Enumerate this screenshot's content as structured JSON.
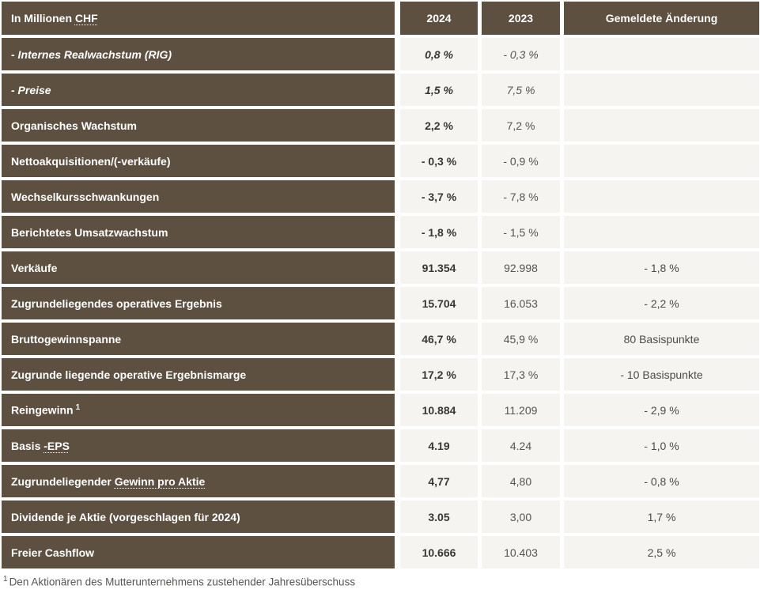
{
  "colors": {
    "header_and_label_bg": "#5e5040",
    "value_cell_bg": "#f5f4f1",
    "label_text": "#ffffff",
    "value_2024_text": "#393733",
    "value_2023_text": "#57544f",
    "separator": "#ffffff"
  },
  "table": {
    "header": {
      "label_prefix": "In Millionen ",
      "label_dotted": "CHF",
      "col_2024": "2024",
      "col_2023": "2023",
      "col_change": "Gemeldete Änderung"
    },
    "rows": [
      {
        "label": "- Internes Realwachstum (RIG)",
        "italic": true,
        "v2024": "0,8 %",
        "v2023": "- 0,3 %",
        "change": ""
      },
      {
        "label": "- Preise",
        "italic": true,
        "v2024": "1,5 %",
        "v2023": "7,5 %",
        "change": ""
      },
      {
        "label": "Organisches Wachstum",
        "v2024": "2,2 %",
        "v2023": "7,2 %",
        "change": ""
      },
      {
        "label": "Nettoakquisitionen/(-verkäufe)",
        "v2024": "- 0,3 %",
        "v2023": "- 0,9 %",
        "change": ""
      },
      {
        "label": "Wechselkursschwankungen",
        "v2024": "- 3,7 %",
        "v2023": "- 7,8 %",
        "change": ""
      },
      {
        "label": "Berichtetes Umsatzwachstum",
        "v2024": "- 1,8 %",
        "v2023": "- 1,5 %",
        "change": ""
      },
      {
        "label": "Verkäufe",
        "v2024": "91.354",
        "v2023": "92.998",
        "change": "- 1,8 %"
      },
      {
        "label": "Zugrundeliegendes operatives Ergebnis",
        "v2024": "15.704",
        "v2023": "16.053",
        "change": "- 2,2 %"
      },
      {
        "label": "Bruttogewinnspanne",
        "v2024": "46,7 %",
        "v2023": "45,9 %",
        "change": "80 Basispunkte"
      },
      {
        "label": "Zugrunde liegende operative Ergebnismarge",
        "v2024": "17,2 %",
        "v2023": "17,3 %",
        "change": "- 10 Basispunkte"
      },
      {
        "label": "Reingewinn",
        "sup": "1",
        "v2024": "10.884",
        "v2023": "11.209",
        "change": "- 2,9 %"
      },
      {
        "label": "Basis ",
        "dotted": "-EPS",
        "v2024": "4.19",
        "v2023": "4.24",
        "change": "- 1,0 %"
      },
      {
        "label": "Zugrundeliegender ",
        "dotted": "Gewinn pro Aktie",
        "v2024": "4,77",
        "v2023": "4,80",
        "change": "- 0,8 %"
      },
      {
        "label": "Dividende je Aktie (vorgeschlagen für 2024)",
        "v2024": "3.05",
        "v2023": "3,00",
        "change": "1,7 %"
      },
      {
        "label": "Freier Cashflow",
        "v2024": "10.666",
        "v2023": "10.403",
        "change": "2,5 %"
      }
    ],
    "footnote": {
      "marker": "1",
      "text": "Den Aktionären des Mutterunternehmens zustehender Jahresüberschuss"
    }
  }
}
